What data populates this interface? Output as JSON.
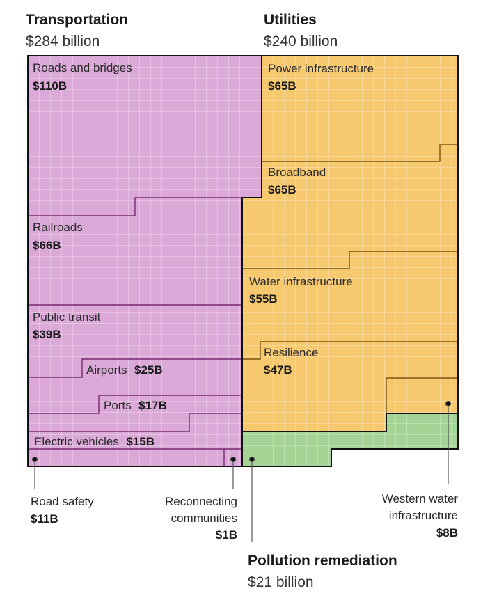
{
  "chart_data": {
    "type": "treemap",
    "unit": "billion dollars",
    "categories": [
      {
        "name": "Transportation",
        "total_label": "$284 billion",
        "total": 284,
        "color": "#dba9d8",
        "items": [
          {
            "name": "Roads and bridges",
            "value_label": "$110B",
            "value": 110
          },
          {
            "name": "Railroads",
            "value_label": "$66B",
            "value": 66
          },
          {
            "name": "Public transit",
            "value_label": "$39B",
            "value": 39
          },
          {
            "name": "Airports",
            "value_label": "$25B",
            "value": 25
          },
          {
            "name": "Ports",
            "value_label": "$17B",
            "value": 17
          },
          {
            "name": "Electric vehicles",
            "value_label": "$15B",
            "value": 15
          },
          {
            "name": "Road safety",
            "value_label": "$11B",
            "value": 11
          },
          {
            "name": "Reconnecting communities",
            "value_label": "$1B",
            "value": 1
          }
        ]
      },
      {
        "name": "Utilities",
        "total_label": "$240 billion",
        "total": 240,
        "color": "#f7c96f",
        "items": [
          {
            "name": "Power infrastructure",
            "value_label": "$65B",
            "value": 65
          },
          {
            "name": "Broadband",
            "value_label": "$65B",
            "value": 65
          },
          {
            "name": "Water infrastructure",
            "value_label": "$55B",
            "value": 55
          },
          {
            "name": "Resilience",
            "value_label": "$47B",
            "value": 47
          },
          {
            "name": "Western water infrastructure",
            "value_label": "$8B",
            "value": 8
          }
        ]
      },
      {
        "name": "Pollution remediation",
        "total_label": "$21 billion",
        "total": 21,
        "color": "#a3d496"
      }
    ],
    "callout_lines": {
      "road_safety": [
        "Road safety"
      ],
      "reconnecting": [
        "Reconnecting",
        "communities"
      ],
      "western_water": [
        "Western water",
        "infrastructure"
      ]
    }
  }
}
